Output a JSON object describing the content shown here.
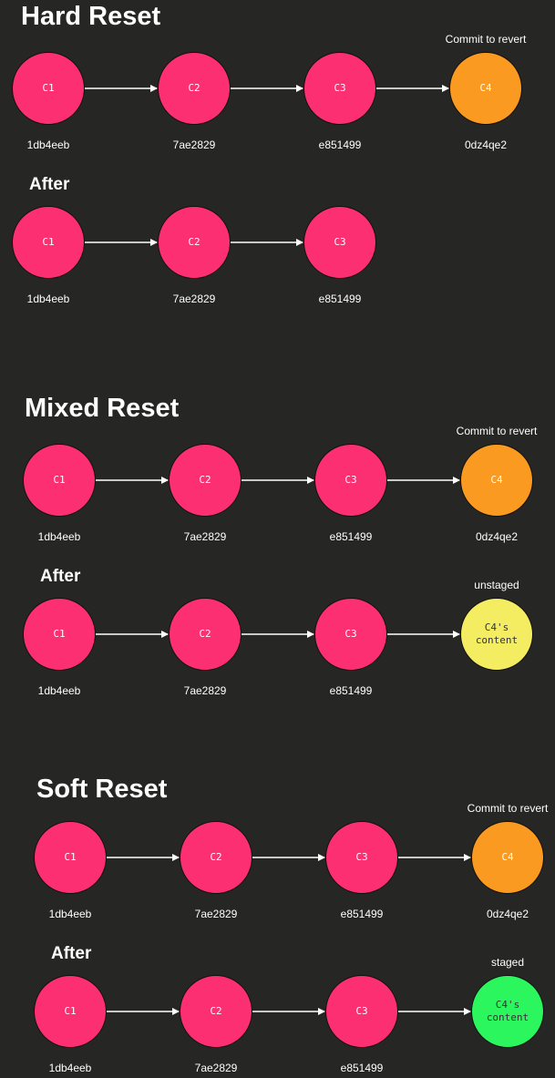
{
  "colors": {
    "background": "#262624",
    "commit": "#fb2f71",
    "revert_target": "#fb9a20",
    "unstaged": "#f4ed61",
    "staged": "#2bf65e",
    "arrow": "#ffffff"
  },
  "sections": [
    {
      "id": "hard",
      "title": "Hard Reset",
      "before": {
        "annotation": "Commit to revert",
        "commits": [
          {
            "label": "C1",
            "hash": "1db4eeb",
            "kind": "commit"
          },
          {
            "label": "C2",
            "hash": "7ae2829",
            "kind": "commit"
          },
          {
            "label": "C3",
            "hash": "e851499",
            "kind": "commit"
          },
          {
            "label": "C4",
            "hash": "0dz4qe2",
            "kind": "revert_target"
          }
        ]
      },
      "after": {
        "title": "After",
        "annotation": "",
        "commits": [
          {
            "label": "C1",
            "hash": "1db4eeb",
            "kind": "commit"
          },
          {
            "label": "C2",
            "hash": "7ae2829",
            "kind": "commit"
          },
          {
            "label": "C3",
            "hash": "e851499",
            "kind": "commit"
          }
        ]
      }
    },
    {
      "id": "mixed",
      "title": "Mixed Reset",
      "before": {
        "annotation": "Commit to revert",
        "commits": [
          {
            "label": "C1",
            "hash": "1db4eeb",
            "kind": "commit"
          },
          {
            "label": "C2",
            "hash": "7ae2829",
            "kind": "commit"
          },
          {
            "label": "C3",
            "hash": "e851499",
            "kind": "commit"
          },
          {
            "label": "C4",
            "hash": "0dz4qe2",
            "kind": "revert_target"
          }
        ]
      },
      "after": {
        "title": "After",
        "annotation": "unstaged",
        "commits": [
          {
            "label": "C1",
            "hash": "1db4eeb",
            "kind": "commit"
          },
          {
            "label": "C2",
            "hash": "7ae2829",
            "kind": "commit"
          },
          {
            "label": "C3",
            "hash": "e851499",
            "kind": "commit"
          },
          {
            "label": "C4's\ncontent",
            "hash": "",
            "kind": "unstaged"
          }
        ]
      }
    },
    {
      "id": "soft",
      "title": "Soft Reset",
      "before": {
        "annotation": "Commit to revert",
        "commits": [
          {
            "label": "C1",
            "hash": "1db4eeb",
            "kind": "commit"
          },
          {
            "label": "C2",
            "hash": "7ae2829",
            "kind": "commit"
          },
          {
            "label": "C3",
            "hash": "e851499",
            "kind": "commit"
          },
          {
            "label": "C4",
            "hash": "0dz4qe2",
            "kind": "revert_target"
          }
        ]
      },
      "after": {
        "title": "After",
        "annotation": "staged",
        "commits": [
          {
            "label": "C1",
            "hash": "1db4eeb",
            "kind": "commit"
          },
          {
            "label": "C2",
            "hash": "7ae2829",
            "kind": "commit"
          },
          {
            "label": "C3",
            "hash": "e851499",
            "kind": "commit"
          },
          {
            "label": "C4's\ncontent",
            "hash": "",
            "kind": "staged"
          }
        ]
      }
    }
  ]
}
